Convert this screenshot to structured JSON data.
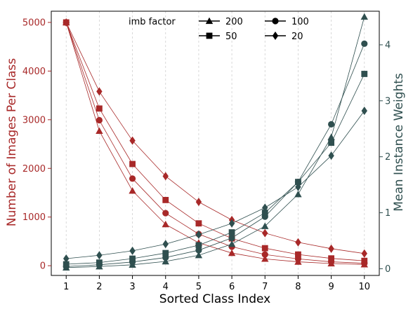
{
  "chart_data": {
    "type": "line",
    "xlabel": "Sorted Class Index",
    "ylabel_left": "Number of Images Per Class",
    "ylabel_right": "Mean Instance Weights",
    "x": [
      1,
      2,
      3,
      4,
      5,
      6,
      7,
      8,
      9,
      10
    ],
    "xticks": [
      "1",
      "2",
      "3",
      "4",
      "5",
      "6",
      "7",
      "8",
      "9",
      "10"
    ],
    "xlim": [
      0.55,
      10.45
    ],
    "ylim_left": [
      -200,
      5230
    ],
    "yticks_left": [
      "0",
      "1000",
      "2000",
      "3000",
      "4000",
      "5000"
    ],
    "ylim_right": [
      -0.12,
      4.6
    ],
    "yticks_right": [
      "0",
      "1",
      "2",
      "3",
      "4"
    ],
    "grid": "vertical-dashed",
    "legend": {
      "title": "imb factor",
      "placement": "top-center",
      "entries": [
        {
          "label": "200",
          "marker": "triangle"
        },
        {
          "label": "100",
          "marker": "circle"
        },
        {
          "label": "50",
          "marker": "square"
        },
        {
          "label": "20",
          "marker": "diamond"
        }
      ]
    },
    "colors": {
      "left_series": "#a82828",
      "right_series": "#2f4f4f",
      "left_axis": "#a82828",
      "right_axis": "#2f4f4f",
      "grid": "#d0d0d0"
    },
    "series_left": [
      {
        "imb": "200",
        "marker": "triangle",
        "values": [
          5000,
          2770,
          1540,
          850,
          470,
          260,
          140,
          80,
          45,
          25
        ]
      },
      {
        "imb": "100",
        "marker": "circle",
        "values": [
          5000,
          2990,
          1790,
          1080,
          650,
          390,
          230,
          140,
          80,
          50
        ]
      },
      {
        "imb": "50",
        "marker": "square",
        "values": [
          5000,
          3230,
          2090,
          1350,
          870,
          560,
          360,
          230,
          150,
          100
        ]
      },
      {
        "imb": "20",
        "marker": "diamond",
        "values": [
          5000,
          3580,
          2570,
          1840,
          1310,
          940,
          670,
          480,
          350,
          250
        ]
      }
    ],
    "series_right": [
      {
        "imb": "200",
        "marker": "triangle",
        "values": [
          0.02,
          0.04,
          0.07,
          0.13,
          0.24,
          0.44,
          0.76,
          1.33,
          2.35,
          4.5
        ]
      },
      {
        "imb": "100",
        "marker": "circle",
        "values": [
          0.04,
          0.07,
          0.12,
          0.2,
          0.33,
          0.55,
          0.93,
          1.55,
          2.58,
          4.02
        ]
      },
      {
        "imb": "50",
        "marker": "square",
        "values": [
          0.08,
          0.11,
          0.18,
          0.28,
          0.42,
          0.65,
          1.0,
          1.55,
          2.25,
          3.48
        ]
      },
      {
        "imb": "20",
        "marker": "diamond",
        "values": [
          0.18,
          0.24,
          0.32,
          0.44,
          0.61,
          0.81,
          1.09,
          1.46,
          2.02,
          2.82
        ]
      }
    ]
  }
}
